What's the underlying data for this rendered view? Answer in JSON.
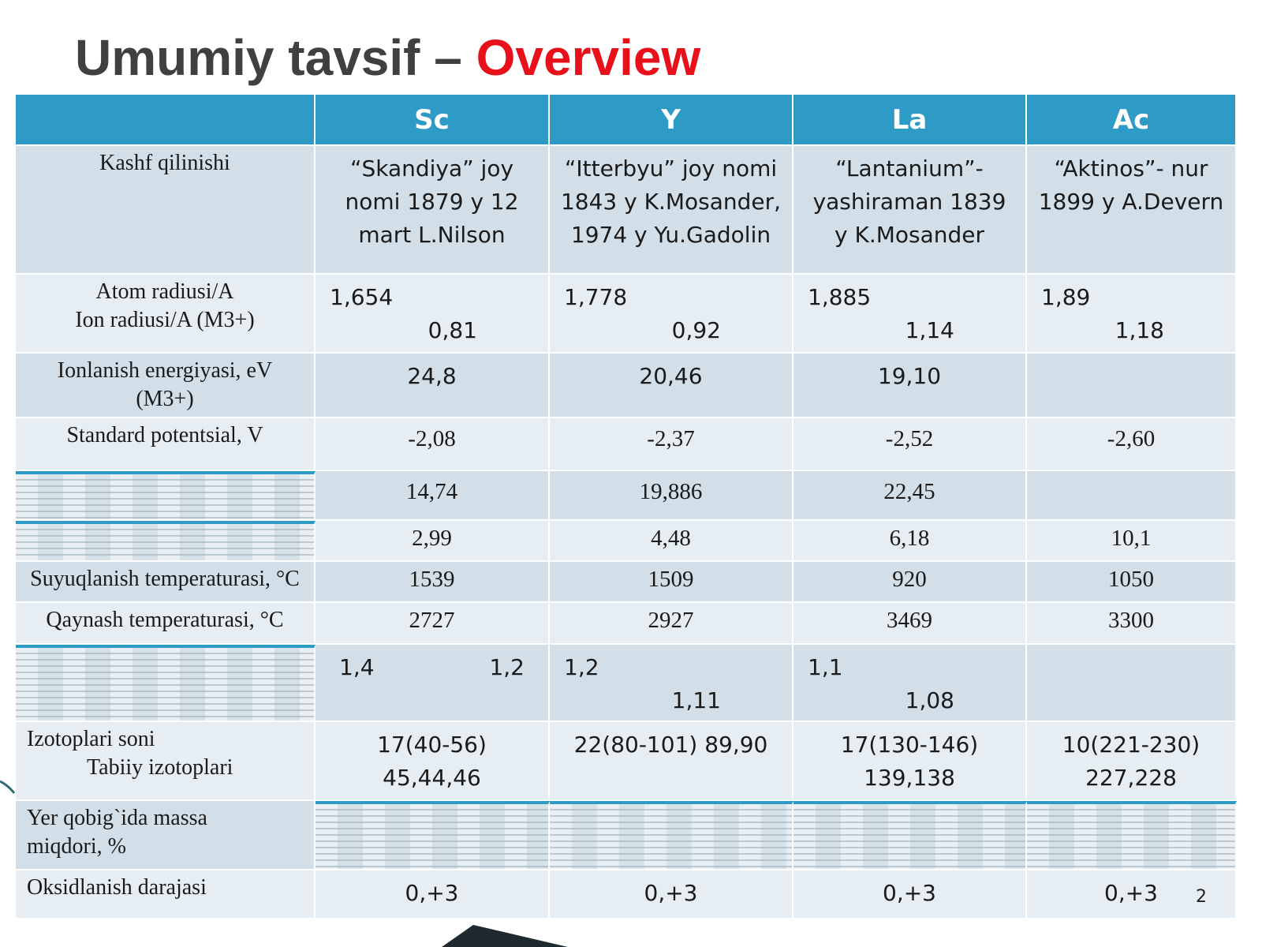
{
  "title": {
    "main": "Umumiy tavsif –",
    "highlight": "Overview"
  },
  "table": {
    "header": [
      null,
      "Sc",
      "Y",
      "La",
      "Ac"
    ],
    "rows": [
      [
        [
          "Kashf qilinishi"
        ],
        [
          "“Skandiya” joy",
          "nomi  1879 y 12",
          "mart L.Nilson"
        ],
        [
          "“Itterbyu” joy nomi",
          "1843 y K.Mosander,",
          "1974 y Yu.Gadolin"
        ],
        [
          "“Lantanium”-",
          "yashiraman 1839",
          "y K.Mosander"
        ],
        [
          "“Aktinos”- nur",
          "1899 y A.Devern"
        ]
      ],
      [
        [
          "Atom radiusi/A",
          "Ion radiusi/A (M3+)"
        ],
        [
          "1,654",
          "0,81"
        ],
        [
          "1,778",
          "0,92"
        ],
        [
          "1,885",
          "1,14"
        ],
        [
          "1,89",
          "1,18"
        ]
      ],
      [
        [
          "Ionlanish energiyasi, eV",
          "(M3+)"
        ],
        [
          "24,8"
        ],
        [
          "20,46"
        ],
        [
          "19,10"
        ],
        null
      ],
      [
        [
          "Standard potentsial, V"
        ],
        [
          "-2,08"
        ],
        [
          "-2,37"
        ],
        [
          "-2,52"
        ],
        [
          "-2,60"
        ]
      ],
      [
        null,
        [
          "14,74"
        ],
        [
          "19,886"
        ],
        [
          "22,45"
        ],
        null
      ],
      [
        null,
        [
          "2,99"
        ],
        [
          "4,48"
        ],
        [
          "6,18"
        ],
        [
          "10,1"
        ]
      ],
      [
        [
          "Suyuqlanish temperaturasi, °C"
        ],
        [
          "1539"
        ],
        [
          "1509"
        ],
        [
          "920"
        ],
        [
          "1050"
        ]
      ],
      [
        [
          "Qaynash temperaturasi, °C"
        ],
        [
          "2727"
        ],
        [
          "2927"
        ],
        [
          "3469"
        ],
        [
          "3300"
        ]
      ],
      [
        null,
        [
          "1,4",
          "1,2"
        ],
        [
          "1,2",
          "1,11"
        ],
        [
          "1,1",
          "1,08"
        ],
        null
      ],
      [
        [
          "Izotoplari  soni",
          "Tabiiy  izotoplari"
        ],
        [
          "17(40-56)",
          "45,44,46"
        ],
        [
          "22(80-101)  89,90"
        ],
        [
          "17(130-146)",
          "139,138"
        ],
        [
          "10(221-230)",
          "227,228"
        ]
      ],
      [
        [
          "Yer qobig`ida massa",
          "miqdori, %"
        ],
        null,
        null,
        null,
        null
      ],
      [
        [
          "Oksidlanish darajasi"
        ],
        [
          "0,+3"
        ],
        [
          "0,+3"
        ],
        [
          "0,+3"
        ],
        [
          "0,+3"
        ]
      ]
    ]
  },
  "page_number": "2"
}
